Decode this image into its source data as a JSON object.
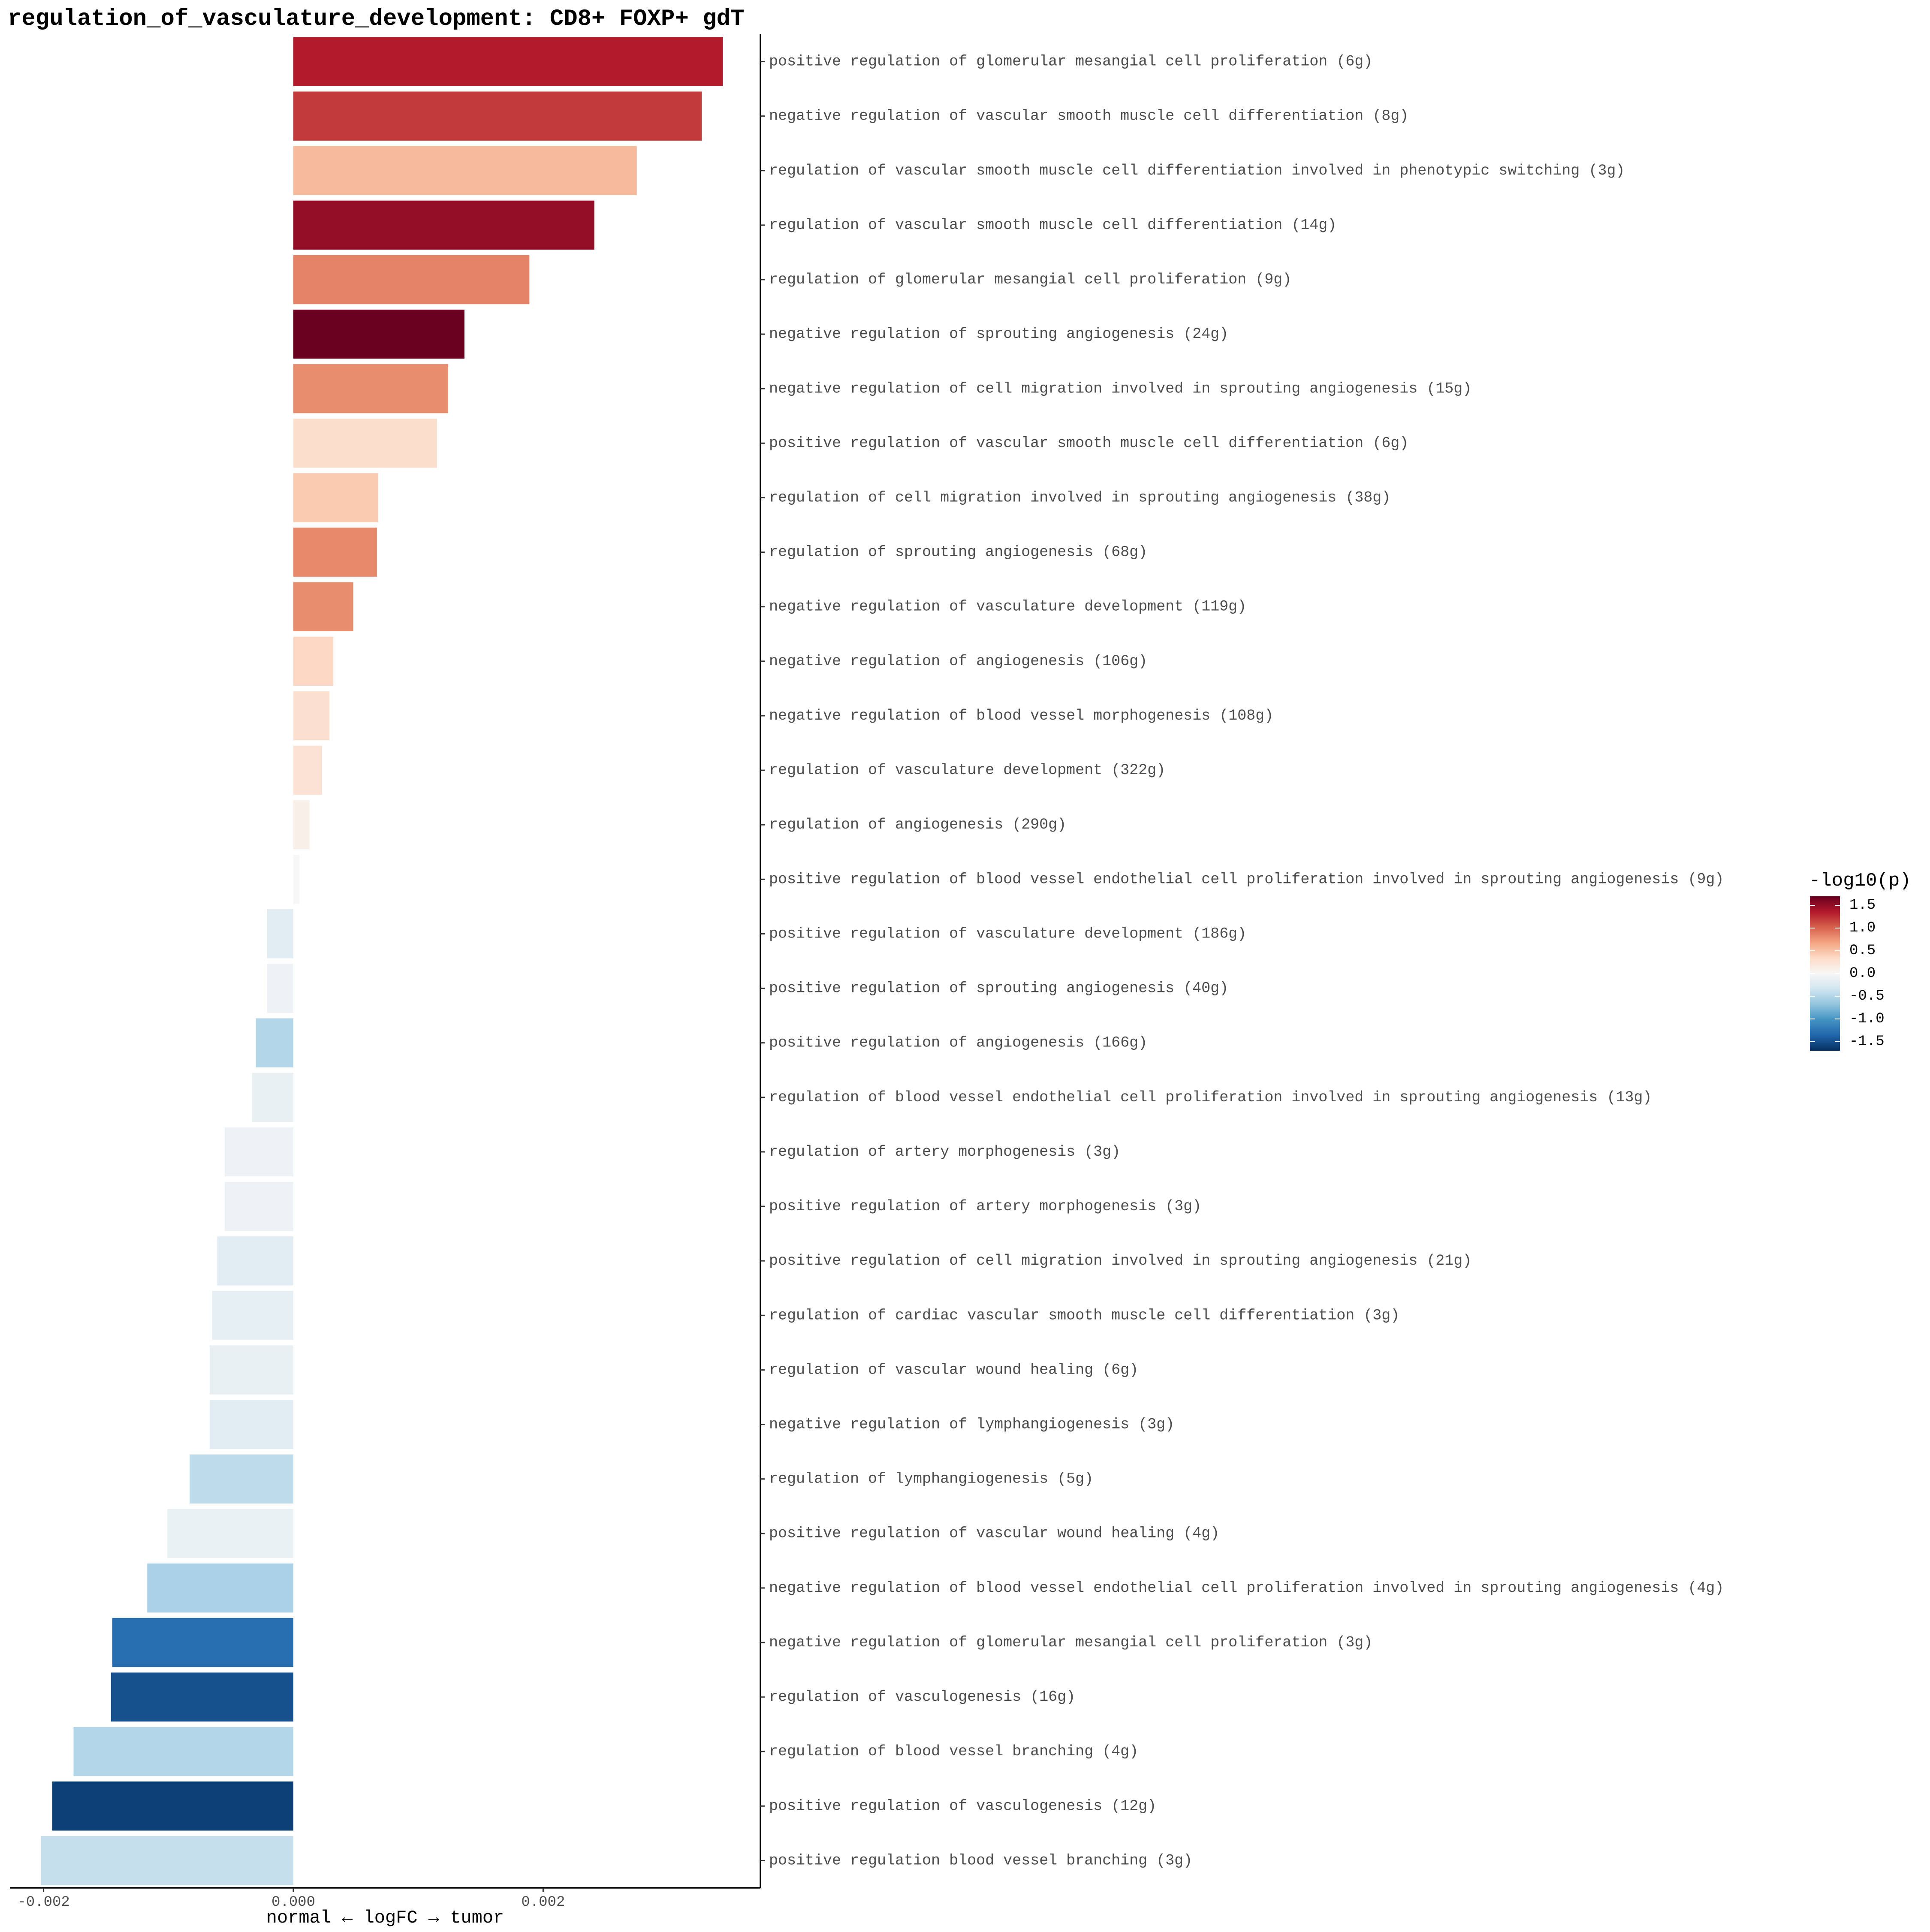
{
  "chart_data": {
    "type": "bar",
    "orientation": "horizontal",
    "title": "regulation_of_vasculature_development: CD8+ FOXP+ gdT",
    "xlabel": "normal ← logFC → tumor",
    "ylabel": "",
    "xlim": [
      -0.00227,
      0.00374
    ],
    "x_ticks": [
      -0.002,
      0.0,
      0.002
    ],
    "x_tick_labels": [
      "-0.002",
      "0.000",
      "0.002"
    ],
    "grid": false,
    "legend": {
      "title": "-log10(p)",
      "position": "right",
      "type": "colorbar",
      "range": [
        -1.7,
        1.7
      ],
      "ticks": [
        1.5,
        1.0,
        0.5,
        0.0,
        -0.5,
        -1.0,
        -1.5
      ],
      "tick_labels": [
        "1.5",
        "1.0",
        "0.5",
        "0.0",
        "-0.5",
        "-1.0",
        "-1.5"
      ],
      "colors": [
        "#053061",
        "#2166AC",
        "#4393C3",
        "#92C5DE",
        "#D1E5F0",
        "#F7F7F7",
        "#FDDBC7",
        "#F4A582",
        "#D6604D",
        "#B2182B",
        "#67001F"
      ]
    },
    "categories": [
      "positive regulation of glomerular mesangial cell proliferation (6g)",
      "negative regulation of vascular smooth muscle cell differentiation (8g)",
      "regulation of vascular smooth muscle cell differentiation involved in phenotypic switching (3g)",
      "regulation of vascular smooth muscle cell differentiation (14g)",
      "regulation of glomerular mesangial cell proliferation (9g)",
      "negative regulation of sprouting angiogenesis (24g)",
      "negative regulation of cell migration involved in sprouting angiogenesis (15g)",
      "positive regulation of vascular smooth muscle cell differentiation (6g)",
      "regulation of cell migration involved in sprouting angiogenesis (38g)",
      "regulation of sprouting angiogenesis (68g)",
      "negative regulation of vasculature development (119g)",
      "negative regulation of angiogenesis (106g)",
      "negative regulation of blood vessel morphogenesis (108g)",
      "regulation of vasculature development (322g)",
      "regulation of angiogenesis (290g)",
      "positive regulation of blood vessel endothelial cell proliferation involved in sprouting angiogenesis (9g)",
      "positive regulation of vasculature development (186g)",
      "positive regulation of sprouting angiogenesis (40g)",
      "positive regulation of angiogenesis (166g)",
      "regulation of blood vessel endothelial cell proliferation involved in sprouting angiogenesis (13g)",
      "regulation of artery morphogenesis (3g)",
      "positive regulation of artery morphogenesis (3g)",
      "positive regulation of cell migration involved in sprouting angiogenesis (21g)",
      "regulation of cardiac vascular smooth muscle cell differentiation (3g)",
      "regulation of vascular wound healing (6g)",
      "negative regulation of lymphangiogenesis (3g)",
      "regulation of lymphangiogenesis (5g)",
      "positive regulation of vascular wound healing (4g)",
      "negative regulation of blood vessel endothelial cell proliferation involved in sprouting angiogenesis (4g)",
      "negative regulation of glomerular mesangial cell proliferation (3g)",
      "regulation of vasculogenesis (16g)",
      "regulation of blood vessel branching (4g)",
      "positive regulation of vasculogenesis (12g)",
      "positive regulation blood vessel branching (3g)"
    ],
    "values": [
      0.00344,
      0.00327,
      0.00275,
      0.00241,
      0.00189,
      0.00137,
      0.00124,
      0.00115,
      0.00068,
      0.00067,
      0.00048,
      0.00032,
      0.00029,
      0.00023,
      0.00013,
      5e-05,
      -0.00021,
      -0.00021,
      -0.0003,
      -0.00033,
      -0.00055,
      -0.00055,
      -0.00061,
      -0.00065,
      -0.00067,
      -0.00067,
      -0.00083,
      -0.00101,
      -0.00117,
      -0.00145,
      -0.00146,
      -0.00176,
      -0.00193,
      -0.00202
    ],
    "neg_log10_p": [
      1.35,
      1.2,
      0.55,
      1.5,
      0.85,
      1.68,
      0.8,
      0.3,
      0.45,
      0.82,
      0.8,
      0.35,
      0.28,
      0.25,
      0.1,
      0.0,
      -0.2,
      -0.1,
      -0.5,
      -0.13,
      -0.1,
      -0.1,
      -0.2,
      -0.15,
      -0.13,
      -0.2,
      -0.45,
      -0.12,
      -0.55,
      -1.3,
      -1.5,
      -0.5,
      -1.6,
      -0.4
    ]
  }
}
